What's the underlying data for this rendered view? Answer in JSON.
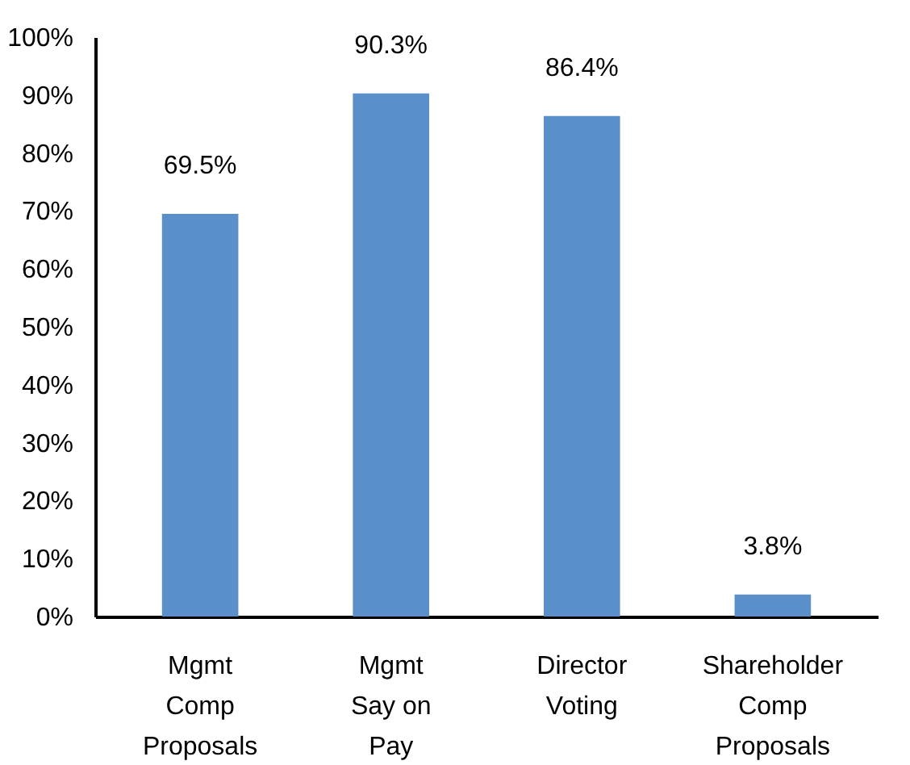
{
  "chart_data": {
    "type": "bar",
    "categories": [
      "Mgmt\nComp\nProposals",
      "Mgmt\nSay on\nPay",
      "Director\nVoting",
      "Shareholder\nComp\nProposals"
    ],
    "values": [
      69.5,
      90.3,
      86.4,
      3.8
    ],
    "value_labels": [
      "69.5%",
      "90.3%",
      "86.4%",
      "3.8%"
    ],
    "color": "#5b8fc9",
    "ylim": [
      0,
      100
    ],
    "yticks": [
      {
        "value": 0,
        "label": "0%"
      },
      {
        "value": 10,
        "label": "10%"
      },
      {
        "value": 20,
        "label": "20%"
      },
      {
        "value": 30,
        "label": "30%"
      },
      {
        "value": 40,
        "label": "40%"
      },
      {
        "value": 50,
        "label": "50%"
      },
      {
        "value": 60,
        "label": "60%"
      },
      {
        "value": 70,
        "label": "70%"
      },
      {
        "value": 80,
        "label": "80%"
      },
      {
        "value": 90,
        "label": "90%"
      },
      {
        "value": 100,
        "label": "100%"
      }
    ],
    "grid": false
  }
}
